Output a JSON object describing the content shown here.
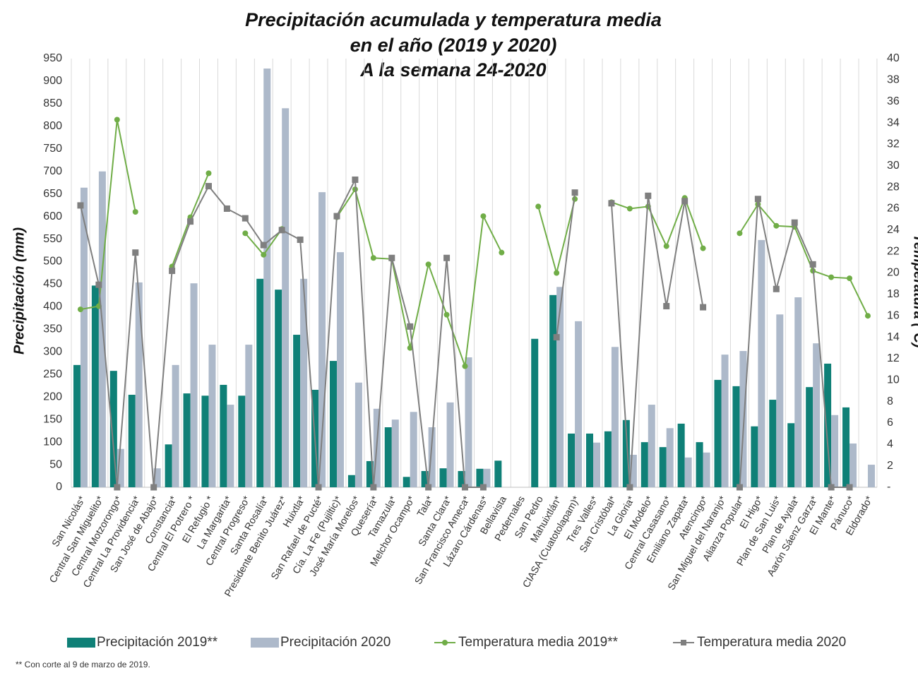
{
  "chart_data": {
    "type": "bar",
    "title": [
      "Precipitación  acumulada y temperatura  media",
      "en el año (2019 y 2020)",
      "A la semana 24-2020"
    ],
    "y_label": "Precipitación (mm)",
    "y2_label": "Temperatura (ºC)",
    "footnote": "** Con corte al 9 de marzo de 2019.",
    "categories": [
      "San Nicolás*",
      "Central San Miguelito*",
      "Central Motzorongo*",
      "Central La Providencia*",
      "San José de Abajo*",
      "Constancia*",
      "Central El Potrero *",
      "El Refugio *",
      "La Margarita*",
      "Central Progreso*",
      "Santa Rosalía*",
      "Presidente Benito Juárez*",
      "Huixtla*",
      "San Rafael de Pucté*",
      "Cía. La Fe (Pujiltic)*",
      "José María Morelos*",
      "Quesería*",
      "Tamazula*",
      "Melchor Ocampo*",
      "Tala*",
      "Santa Clara*",
      "San Francisco Ameca*",
      "Lázaro Cárdenas*",
      "Bellavista",
      "Pedernales",
      "San Pedro",
      "Mahuixtlán*",
      "CIASA (Cuatotolapam)*",
      "Tres Valles*",
      "San Cristóbal*",
      "La Gloria*",
      "El Modelo*",
      "Central Casasano*",
      "Emiliano Zapata*",
      "Atencingo*",
      "San Miguel del Naranjo*",
      "Alianza Popular*",
      "El Higo*",
      "Plan de San Luis*",
      "Plan de Ayala*",
      "Aarón Sáenz Garza*",
      "El Mante*",
      "Pánuco*",
      "Eldorado*"
    ],
    "series": [
      {
        "name": "Precipitación 2019**",
        "type": "bar",
        "color": "#0f8077",
        "values": [
          271,
          447,
          258,
          205,
          null,
          95,
          208,
          203,
          227,
          203,
          462,
          438,
          338,
          216,
          280,
          27,
          58,
          133,
          23,
          36,
          42,
          36,
          41,
          59,
          null,
          329,
          426,
          119,
          119,
          124,
          149,
          100,
          89,
          141,
          100,
          238,
          224,
          135,
          194,
          142,
          222,
          274,
          177,
          null
        ]
      },
      {
        "name": "Precipitación 2020",
        "type": "bar",
        "color": "#adb9ca",
        "values": [
          664,
          700,
          85,
          454,
          42,
          271,
          452,
          316,
          183,
          316,
          928,
          840,
          462,
          654,
          521,
          232,
          174,
          150,
          167,
          133,
          188,
          288,
          41,
          null,
          null,
          null,
          444,
          368,
          99,
          311,
          72,
          183,
          131,
          66,
          77,
          294,
          302,
          548,
          383,
          421,
          319,
          160,
          97,
          50
        ]
      },
      {
        "name": "Temperatura media 2019**",
        "type": "line",
        "axis": "y2",
        "marker": "circle",
        "color": "#70ad47",
        "values": [
          16.6,
          16.9,
          34.3,
          25.7,
          null,
          20.6,
          25.2,
          29.3,
          null,
          23.7,
          21.7,
          24.1,
          null,
          null,
          25.2,
          27.8,
          21.4,
          21.3,
          13.0,
          20.8,
          16.1,
          11.3,
          25.3,
          21.9,
          null,
          26.2,
          20.0,
          26.9,
          null,
          26.6,
          26.0,
          26.2,
          22.5,
          27.0,
          22.3,
          null,
          23.7,
          26.4,
          24.4,
          24.3,
          20.2,
          19.6,
          19.5,
          16.0
        ]
      },
      {
        "name": "Temperatura media 2020",
        "type": "line",
        "axis": "y2",
        "marker": "square",
        "color": "#7f7f7f",
        "values": [
          26.3,
          18.9,
          0,
          21.9,
          0,
          20.2,
          24.8,
          28.1,
          26.0,
          25.1,
          22.6,
          24.0,
          23.1,
          0,
          25.3,
          28.7,
          0,
          21.4,
          15.0,
          0,
          21.4,
          0,
          0,
          null,
          null,
          null,
          14.0,
          27.5,
          null,
          26.5,
          0,
          27.2,
          16.9,
          26.7,
          16.8,
          null,
          0,
          26.9,
          18.5,
          24.7,
          20.8,
          0,
          0,
          null
        ]
      }
    ],
    "ylim": [
      0,
      950
    ],
    "yticks": [
      0,
      50,
      100,
      150,
      200,
      250,
      300,
      350,
      400,
      450,
      500,
      550,
      600,
      650,
      700,
      750,
      800,
      850,
      900,
      950
    ],
    "y2lim": [
      0,
      40
    ],
    "y2ticks": [
      {
        "value": 0,
        "label": "-"
      },
      2,
      4,
      6,
      8,
      10,
      12,
      14,
      16,
      18,
      20,
      22,
      24,
      26,
      28,
      30,
      32,
      34,
      36,
      38,
      40
    ],
    "grid": true,
    "grid_axis": "x",
    "legend": "bottom"
  }
}
